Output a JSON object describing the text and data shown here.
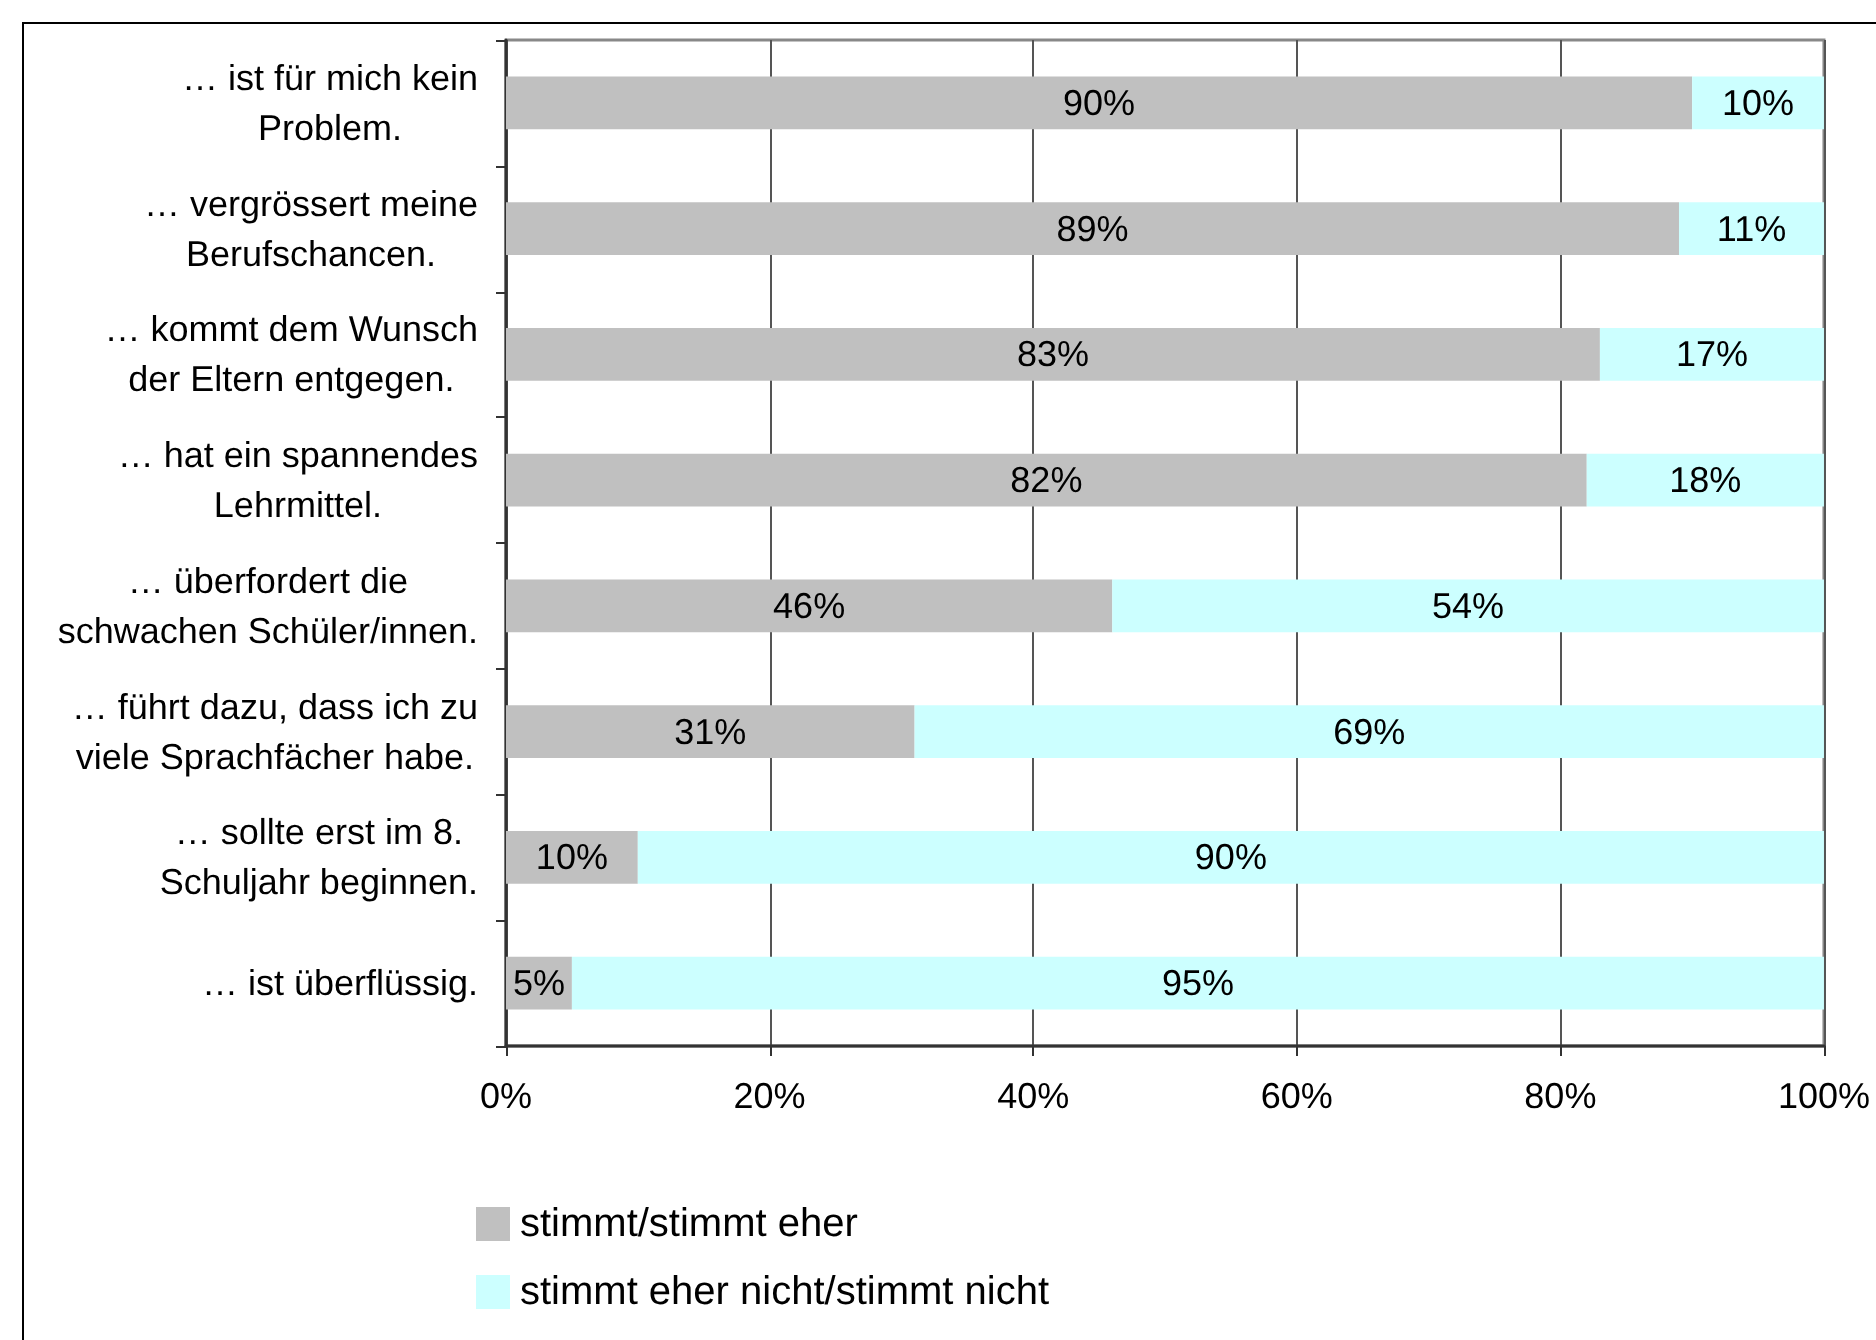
{
  "chart_data": {
    "type": "bar",
    "orientation": "horizontal",
    "stacked": true,
    "categories": [
      "… ist für mich kein\nProblem.",
      "… vergrössert meine\nBerufschancen.",
      "… kommt dem Wunsch\nder Eltern entgegen.",
      "… hat ein spannendes\nLehrmittel.",
      "… überfordert die\nschwachen Schüler/innen.",
      "… führt dazu, dass ich zu\nviele Sprachfächer habe.",
      "… sollte erst im 8.\nSchuljahr beginnen.",
      "… ist überflüssig."
    ],
    "series": [
      {
        "name": "stimmt/stimmt eher",
        "color": "#c0c0c0",
        "values": [
          90,
          89,
          83,
          82,
          46,
          31,
          10,
          5
        ],
        "value_labels": [
          "90%",
          "89%",
          "83%",
          "82%",
          "46%",
          "31%",
          "10%",
          "5%"
        ]
      },
      {
        "name": "stimmt eher nicht/stimmt nicht",
        "color": "#ccffff",
        "values": [
          10,
          11,
          17,
          18,
          54,
          69,
          90,
          95
        ],
        "value_labels": [
          "10%",
          "11%",
          "17%",
          "18%",
          "54%",
          "69%",
          "90%",
          "95%"
        ]
      }
    ],
    "xlim": [
      0,
      100
    ],
    "xticks": [
      {
        "value": 0,
        "label": "0%"
      },
      {
        "value": 20,
        "label": "20%"
      },
      {
        "value": 40,
        "label": "40%"
      },
      {
        "value": 60,
        "label": "60%"
      },
      {
        "value": 80,
        "label": "80%"
      },
      {
        "value": 100,
        "label": "100%"
      }
    ],
    "grid": "x",
    "legend": "bottom"
  }
}
